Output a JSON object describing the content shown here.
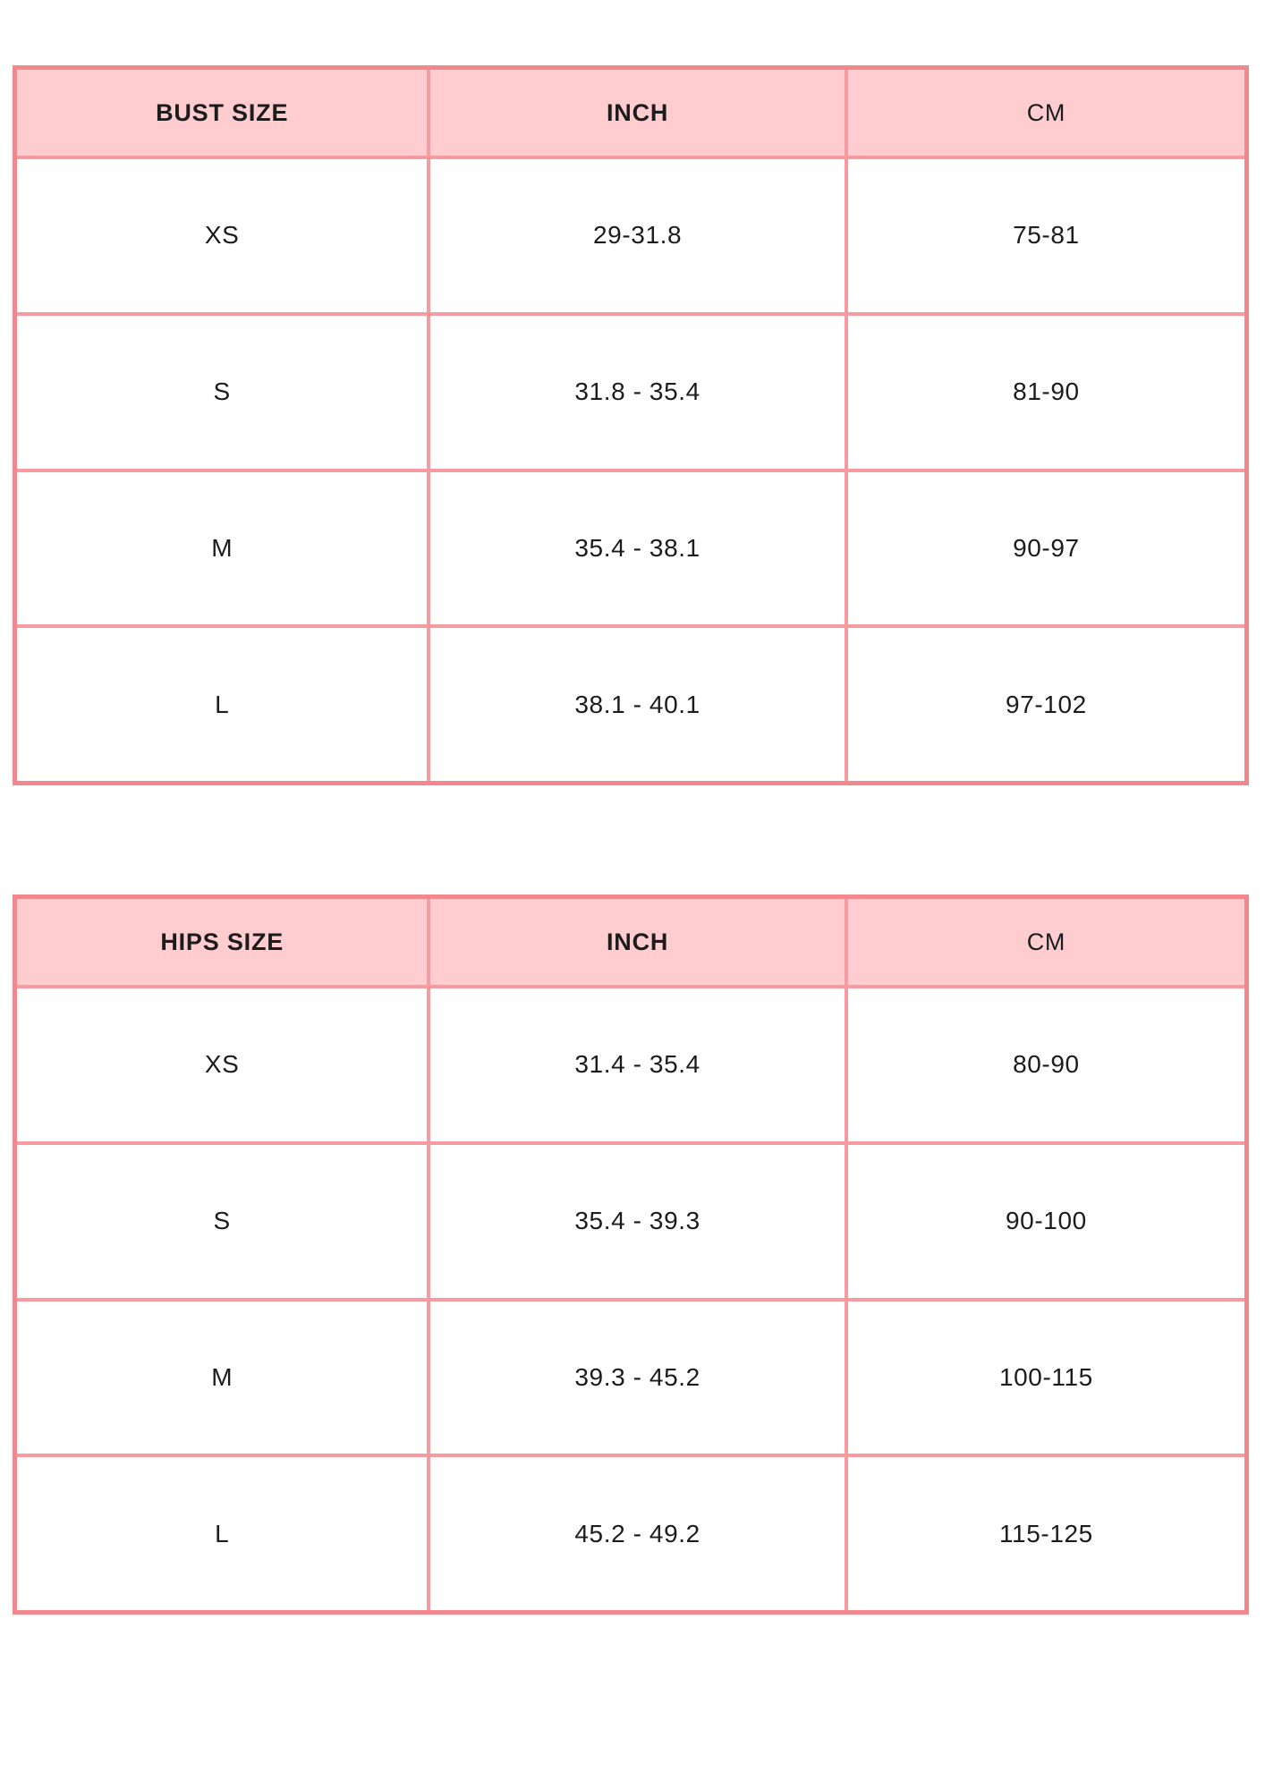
{
  "colors": {
    "outer_border": "#f2878e",
    "inner_border": "#f79ba1",
    "header_fill": "#ffcdd0",
    "text": "#1c1c1c",
    "page_background": "#ffffff"
  },
  "tables": [
    {
      "id": "bust",
      "headers": [
        "BUST SIZE",
        "INCH",
        "CM"
      ],
      "rows": [
        {
          "size": "XS",
          "inch": "29-31.8",
          "cm": "75-81"
        },
        {
          "size": "S",
          "inch": "31.8 - 35.4",
          "cm": "81-90"
        },
        {
          "size": "M",
          "inch": "35.4 - 38.1",
          "cm": "90-97"
        },
        {
          "size": "L",
          "inch": "38.1 - 40.1",
          "cm": "97-102"
        }
      ]
    },
    {
      "id": "hips",
      "headers": [
        "HIPS SIZE",
        "INCH",
        "CM"
      ],
      "rows": [
        {
          "size": "XS",
          "inch": "31.4 - 35.4",
          "cm": "80-90"
        },
        {
          "size": "S",
          "inch": "35.4 - 39.3",
          "cm": "90-100"
        },
        {
          "size": "M",
          "inch": "39.3 - 45.2",
          "cm": "100-115"
        },
        {
          "size": "L",
          "inch": "45.2 - 49.2",
          "cm": "115-125"
        }
      ]
    }
  ]
}
